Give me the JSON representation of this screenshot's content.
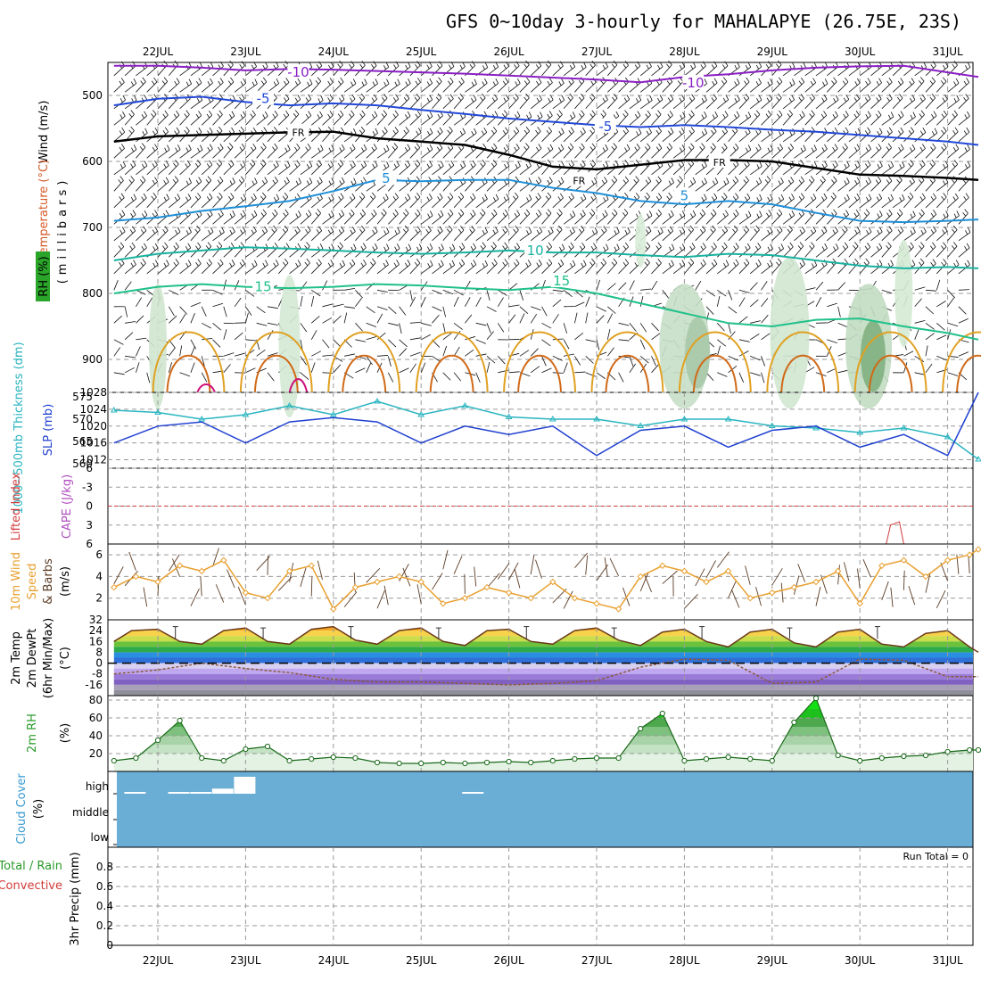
{
  "title": "GFS 0~10day 3-hourly for MAHALAPYE (26.75E, 23S)",
  "run_total": "Run Total = 0",
  "colors": {
    "temp_minus10": "#8a1fc4",
    "temp_minus5": "#2148d8",
    "temp_fr": "#000000",
    "temp_5": "#1f8fd8",
    "temp_10": "#19b2a0",
    "temp_15": "#1fc08a",
    "temp_warm": "#e0a020",
    "temp_hot": "#d06a18",
    "temp_hottest": "#d0107a",
    "thickness": "#2ab5c0",
    "slp": "#2040d0",
    "lifted_index": "#d23b3b",
    "wind_speed": "#e8a030",
    "barb": "#5a3a22",
    "rh": "#2a9a2a",
    "cloud": "#6aaed6"
  },
  "chart_data": [
    {
      "panel": "upper-air",
      "type": "line",
      "ylabel_parts": [
        "Wind (m/s)",
        "Temperature (°C)",
        "RH (%)"
      ],
      "yunit": "(millibars)",
      "ylim": [
        950,
        450
      ],
      "yticks": [
        500,
        600,
        700,
        800,
        900
      ],
      "x_ticks": [
        "22JUL",
        "23JUL",
        "24JUL",
        "25JUL",
        "26JUL",
        "27JUL",
        "28JUL",
        "29JUL",
        "30JUL",
        "31JUL"
      ],
      "contour_labels": [
        {
          "text": "-10",
          "day": 1.6,
          "p": 465
        },
        {
          "text": "-10",
          "day": 6.1,
          "p": 481
        },
        {
          "text": "-5",
          "day": 1.2,
          "p": 505
        },
        {
          "text": "-5",
          "day": 5.1,
          "p": 547
        },
        {
          "text": "FR",
          "day": 1.6,
          "p": 555
        },
        {
          "text": "FR",
          "day": 4.8,
          "p": 628
        },
        {
          "text": "FR",
          "day": 6.4,
          "p": 600
        },
        {
          "text": "5",
          "day": 2.6,
          "p": 626
        },
        {
          "text": "5",
          "day": 6.0,
          "p": 652
        },
        {
          "text": "10",
          "day": 4.3,
          "p": 735
        },
        {
          "text": "15",
          "day": 1.2,
          "p": 790
        },
        {
          "text": "15",
          "day": 4.6,
          "p": 781
        }
      ],
      "series": [
        {
          "name": "-10",
          "x": [
            0,
            0.5,
            1,
            1.5,
            2,
            2.5,
            3,
            3.5,
            4,
            4.5,
            5,
            5.5,
            6,
            6.5,
            7,
            7.5,
            8,
            8.5,
            9,
            9.5,
            9.85
          ],
          "values": [
            455,
            455,
            458,
            462,
            460,
            461,
            463,
            465,
            467,
            470,
            473,
            476,
            480,
            472,
            468,
            462,
            458,
            456,
            455,
            465,
            472
          ]
        },
        {
          "name": "-5",
          "x": [
            0,
            0.5,
            1,
            1.5,
            2,
            2.5,
            3,
            3.5,
            4,
            4.5,
            5,
            5.5,
            6,
            6.5,
            7,
            7.5,
            8,
            8.5,
            9,
            9.5,
            9.85
          ],
          "values": [
            515,
            505,
            502,
            510,
            515,
            512,
            515,
            522,
            528,
            535,
            540,
            545,
            548,
            545,
            548,
            552,
            555,
            560,
            565,
            570,
            575
          ]
        },
        {
          "name": "FR",
          "x": [
            0,
            0.5,
            1,
            1.5,
            2,
            2.5,
            3,
            3.5,
            4,
            4.5,
            5,
            5.5,
            6,
            6.5,
            7,
            7.5,
            8,
            8.5,
            9,
            9.5,
            9.85
          ],
          "values": [
            570,
            562,
            560,
            558,
            556,
            555,
            565,
            570,
            575,
            590,
            608,
            612,
            605,
            598,
            598,
            600,
            610,
            620,
            622,
            625,
            628
          ]
        },
        {
          "name": "5",
          "x": [
            0,
            0.5,
            1,
            1.5,
            2,
            2.5,
            3,
            3.5,
            4,
            4.5,
            5,
            5.5,
            6,
            6.5,
            7,
            7.5,
            8,
            8.5,
            9,
            9.5,
            9.85
          ],
          "values": [
            690,
            685,
            675,
            668,
            660,
            645,
            628,
            630,
            628,
            628,
            640,
            648,
            660,
            665,
            660,
            665,
            678,
            690,
            692,
            690,
            688
          ]
        },
        {
          "name": "10",
          "x": [
            0,
            0.5,
            1,
            1.5,
            2,
            2.5,
            3,
            3.5,
            4,
            4.5,
            5,
            5.5,
            6,
            6.5,
            7,
            7.5,
            8,
            8.5,
            9,
            9.5,
            9.85
          ],
          "values": [
            750,
            740,
            735,
            730,
            732,
            735,
            738,
            740,
            738,
            735,
            738,
            738,
            742,
            745,
            740,
            742,
            750,
            758,
            762,
            760,
            762
          ]
        },
        {
          "name": "15",
          "x": [
            0,
            0.5,
            1,
            1.5,
            2,
            2.5,
            3,
            3.5,
            4,
            4.5,
            5,
            5.5,
            6,
            6.5,
            7,
            7.5,
            8,
            8.5,
            9,
            9.5,
            9.85
          ],
          "values": [
            800,
            790,
            786,
            790,
            792,
            790,
            786,
            788,
            792,
            795,
            790,
            800,
            815,
            830,
            845,
            850,
            840,
            838,
            850,
            860,
            870
          ]
        }
      ]
    },
    {
      "panel": "thickness-slp",
      "type": "line",
      "ylabel_left": "1000~500mb Thickness (dm)",
      "ylabel_right": "SLP (mb)",
      "ylim_left": [
        559,
        576
      ],
      "yticks_left": [
        560,
        565,
        570,
        575
      ],
      "ylim_right": [
        1010,
        1028
      ],
      "yticks_right": [
        1012,
        1016,
        1020,
        1024,
        1028
      ],
      "series": [
        {
          "name": "thickness",
          "x": [
            0,
            0.5,
            1,
            1.5,
            2,
            2.5,
            3,
            3.5,
            4,
            4.5,
            5,
            5.5,
            6,
            6.5,
            7,
            7.5,
            8,
            8.5,
            9,
            9.5,
            9.85
          ],
          "values": [
            572,
            571.5,
            570,
            571,
            573,
            571,
            574,
            571,
            573,
            570.5,
            570,
            570,
            568.5,
            570,
            570,
            568.5,
            568,
            567,
            568,
            566,
            561
          ]
        },
        {
          "name": "slp",
          "x": [
            0,
            0.5,
            1,
            1.5,
            2,
            2.5,
            3,
            3.5,
            4,
            4.5,
            5,
            5.5,
            6,
            6.5,
            7,
            7.5,
            8,
            8.5,
            9,
            9.5,
            9.85
          ],
          "values": [
            1016,
            1020,
            1021,
            1016,
            1021,
            1022,
            1021,
            1016,
            1020,
            1018,
            1020,
            1013,
            1019,
            1020,
            1015,
            1019,
            1020,
            1015,
            1018,
            1013,
            1028
          ]
        }
      ]
    },
    {
      "panel": "lifted-index-cape",
      "type": "line",
      "ylabel_left": "Lifted Index",
      "ylabel_right": "CAPE (J/kg)",
      "ylim": [
        6,
        -6
      ],
      "yticks": [
        6,
        3,
        0,
        -3,
        -6
      ],
      "series": [
        {
          "name": "lifted-index",
          "x": [
            8.3,
            8.35,
            8.45,
            8.5
          ],
          "values": [
            6.0,
            3.0,
            2.5,
            6.0
          ]
        }
      ]
    },
    {
      "panel": "10m-wind",
      "type": "line",
      "ylabel_parts": [
        "10m Wind",
        "Speed",
        "& Barbs"
      ],
      "yunit": "(m/s)",
      "ylim": [
        0,
        7
      ],
      "yticks": [
        2,
        4,
        6
      ],
      "series": [
        {
          "name": "speed",
          "x": [
            0,
            0.25,
            0.5,
            0.75,
            1,
            1.25,
            1.5,
            1.75,
            2,
            2.25,
            2.5,
            2.75,
            3,
            3.25,
            3.5,
            3.75,
            4,
            4.25,
            4.5,
            4.75,
            5,
            5.25,
            5.5,
            5.75,
            6,
            6.25,
            6.5,
            6.75,
            7,
            7.25,
            7.5,
            7.75,
            8,
            8.25,
            8.5,
            8.75,
            9,
            9.25,
            9.5,
            9.75,
            9.85
          ],
          "values": [
            3.0,
            4.0,
            3.5,
            5.0,
            4.5,
            5.5,
            2.5,
            2.0,
            4.5,
            5.0,
            1.0,
            3.0,
            3.5,
            4.0,
            3.5,
            1.5,
            2.0,
            3.0,
            2.5,
            2.0,
            3.5,
            2.0,
            1.5,
            1.0,
            4.0,
            5.0,
            4.5,
            3.5,
            4.5,
            2.0,
            2.5,
            3.0,
            3.5,
            4.5,
            1.5,
            5.0,
            5.5,
            4.0,
            5.5,
            6.0,
            6.5
          ]
        }
      ]
    },
    {
      "panel": "2m-temp",
      "type": "area",
      "ylabel_parts": [
        "2m Temp",
        "2m DewPt",
        "(6hr Min/Max)"
      ],
      "yunit": "(°C)",
      "ylim": [
        -24,
        32
      ],
      "yticks": [
        -16,
        -8,
        0,
        8,
        16,
        24,
        32
      ],
      "series": [
        {
          "name": "temperature",
          "x": [
            0,
            0.2,
            0.5,
            0.75,
            1,
            1.25,
            1.5,
            1.75,
            2,
            2.25,
            2.5,
            2.75,
            3,
            3.25,
            3.5,
            3.75,
            4,
            4.25,
            4.5,
            4.75,
            5,
            5.25,
            5.5,
            5.75,
            6,
            6.25,
            6.5,
            6.75,
            7,
            7.25,
            7.5,
            7.75,
            8,
            8.25,
            8.5,
            8.75,
            9,
            9.25,
            9.5,
            9.75,
            9.85
          ],
          "values": [
            16,
            24,
            25,
            16,
            14,
            24,
            26,
            16,
            14,
            25,
            27,
            17,
            14,
            24,
            26,
            16,
            13,
            24,
            25,
            16,
            14,
            24,
            26,
            17,
            13,
            23,
            25,
            16,
            12,
            23,
            25,
            15,
            12,
            23,
            25,
            14,
            12,
            22,
            24,
            12,
            8
          ]
        },
        {
          "name": "dewpoint",
          "x": [
            0,
            0.5,
            1,
            1.5,
            2,
            2.5,
            3,
            3.5,
            4,
            4.5,
            5,
            5.5,
            6,
            6.5,
            7,
            7.5,
            8,
            8.5,
            9,
            9.5,
            9.85
          ],
          "values": [
            -8,
            -5,
            0,
            -4,
            -7,
            -12,
            -14,
            -14,
            -15,
            -16,
            -15,
            -13,
            -3,
            3,
            2,
            -15,
            -14,
            3,
            2,
            -10,
            -10
          ]
        }
      ]
    },
    {
      "panel": "2m-rh",
      "type": "area",
      "ylabel": "2m RH",
      "yunit": "(%)",
      "ylim": [
        0,
        85
      ],
      "yticks": [
        20,
        40,
        60,
        80
      ],
      "series": [
        {
          "name": "rh",
          "x": [
            0,
            0.25,
            0.5,
            0.75,
            1,
            1.25,
            1.5,
            1.75,
            2,
            2.25,
            2.5,
            2.75,
            3,
            3.25,
            3.5,
            3.75,
            4,
            4.25,
            4.5,
            4.75,
            5,
            5.25,
            5.5,
            5.75,
            6,
            6.25,
            6.5,
            6.75,
            7,
            7.25,
            7.5,
            7.75,
            8,
            8.25,
            8.5,
            8.75,
            9,
            9.25,
            9.5,
            9.75,
            9.85
          ],
          "values": [
            12,
            15,
            35,
            57,
            15,
            12,
            25,
            28,
            12,
            14,
            16,
            15,
            10,
            9,
            9,
            10,
            9,
            10,
            11,
            10,
            12,
            14,
            15,
            15,
            48,
            65,
            12,
            14,
            16,
            14,
            12,
            55,
            82,
            18,
            12,
            15,
            17,
            18,
            22,
            24,
            24
          ]
        }
      ]
    },
    {
      "panel": "cloud-cover",
      "type": "bar",
      "ylabel": "Cloud Cover",
      "yunit": "(%)",
      "levels": [
        "high",
        "middle",
        "low"
      ],
      "series": [
        {
          "name": "high",
          "x": [
            0.25,
            0.5,
            0.75,
            1,
            1.25,
            1.5,
            4.1
          ],
          "values": [
            5,
            0,
            5,
            5,
            15,
            50,
            5
          ]
        }
      ]
    },
    {
      "panel": "precip",
      "type": "bar",
      "ylabel_parts": [
        "Total / Rain",
        "Convective"
      ],
      "ylabel": "3hr Precip (mm)",
      "ylim": [
        0,
        1
      ],
      "yticks": [
        0,
        0.2,
        0.4,
        0.6,
        0.8
      ],
      "series": [
        {
          "name": "total",
          "x": [],
          "values": []
        }
      ]
    }
  ]
}
